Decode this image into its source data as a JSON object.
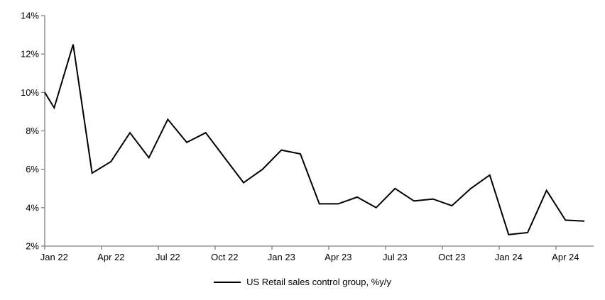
{
  "chart_data": {
    "type": "line",
    "title": "",
    "legend": {
      "label": "US Retail sales control group, %y/y",
      "position": "bottom-center"
    },
    "months": [
      "Jan 22",
      "Feb 22",
      "Mar 22",
      "Apr 22",
      "May 22",
      "Jun 22",
      "Jul 22",
      "Aug 22",
      "Sep 22",
      "Oct 22",
      "Nov 22",
      "Dec 22",
      "Jan 23",
      "Feb 23",
      "Mar 23",
      "Apr 23",
      "May 23",
      "Jun 23",
      "Jul 23",
      "Aug 23",
      "Sep 23",
      "Oct 23",
      "Nov 23",
      "Dec 23",
      "Jan 24",
      "Feb 24",
      "Mar 24",
      "Apr 24",
      "May 24"
    ],
    "series": [
      {
        "name": "US Retail sales control group, %y/y",
        "values": [
          9.2,
          12.5,
          5.8,
          6.4,
          7.9,
          6.6,
          8.6,
          7.4,
          7.9,
          6.6,
          5.3,
          6.0,
          7.0,
          6.8,
          4.2,
          4.2,
          4.55,
          4.0,
          5.0,
          4.35,
          4.45,
          4.1,
          5.0,
          5.7,
          2.6,
          2.7,
          4.9,
          3.35,
          3.3
        ]
      }
    ],
    "lead_in_value_at_left_axis": 10.0,
    "ylim": [
      2,
      14
    ],
    "y_tick_step": 2,
    "y_tick_labels": [
      "2%",
      "4%",
      "6%",
      "8%",
      "10%",
      "12%",
      "14%"
    ],
    "x_tick_labels": [
      "Jan 22",
      "Apr 22",
      "Jul 22",
      "Oct 22",
      "Jan 23",
      "Apr 23",
      "Jul 23",
      "Oct 23",
      "Jan 24",
      "Apr 24"
    ],
    "x_label_every": 3,
    "grid": false,
    "colors": {
      "line": "#000000",
      "axis": "#808080",
      "text": "#000000",
      "background": "#ffffff"
    }
  }
}
